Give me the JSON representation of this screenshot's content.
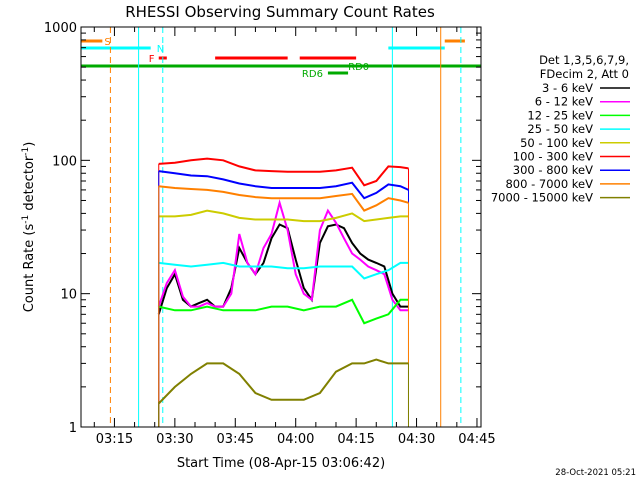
{
  "chart_data": {
    "type": "line",
    "title": "RHESSI Observing Summary Count Rates",
    "xlabel": "Start Time (08-Apr-15 03:06:42)",
    "ylabel": "Count Rate (s",
    "ylabel_sup": "-1",
    "ylabel_mid": " detector",
    "ylabel_sup2": "-1",
    "ylabel_end": ")",
    "y_scale": "log",
    "ylim": [
      1,
      1000
    ],
    "xlim": [
      "03:06:42",
      "04:46:00"
    ],
    "x_ticks": [
      "03:15",
      "03:30",
      "03:45",
      "04:00",
      "04:15",
      "04:30",
      "04:45"
    ],
    "y_ticks": [
      "1",
      "10",
      "100",
      "1000"
    ],
    "legend_header": [
      "Det 1,3,5,6,7,9,",
      "FDecim 2, Att 0"
    ],
    "series": [
      {
        "name": "3 - 6 keV",
        "color": "#000000",
        "x": [
          "03:26",
          "03:28",
          "03:30",
          "03:32",
          "03:34",
          "03:36",
          "03:38",
          "03:40",
          "03:42",
          "03:44",
          "03:46",
          "03:48",
          "03:50",
          "03:52",
          "03:54",
          "03:56",
          "03:58",
          "04:00",
          "04:02",
          "04:04",
          "04:06",
          "04:08",
          "04:10",
          "04:12",
          "04:14",
          "04:16",
          "04:18",
          "04:20",
          "04:22",
          "04:24",
          "04:26",
          "04:28"
        ],
        "y": [
          7,
          11,
          14,
          9,
          8,
          8.5,
          9,
          8,
          8,
          11,
          22,
          17,
          14,
          17,
          26,
          33,
          31,
          18,
          11,
          9,
          24,
          32,
          33,
          31,
          24,
          20,
          18,
          17,
          16,
          10,
          8,
          8
        ]
      },
      {
        "name": "6 - 12 keV",
        "color": "#ff00ff",
        "x": [
          "03:26",
          "03:28",
          "03:30",
          "03:32",
          "03:34",
          "03:36",
          "03:38",
          "03:40",
          "03:42",
          "03:44",
          "03:46",
          "03:48",
          "03:50",
          "03:52",
          "03:54",
          "03:56",
          "03:58",
          "04:00",
          "04:02",
          "04:04",
          "04:06",
          "04:08",
          "04:10",
          "04:12",
          "04:14",
          "04:16",
          "04:18",
          "04:20",
          "04:22",
          "04:24",
          "04:26",
          "04:28"
        ],
        "y": [
          8,
          12,
          15,
          9.5,
          8,
          8,
          8.5,
          8,
          8,
          10,
          28,
          17,
          14,
          22,
          28,
          48,
          30,
          14,
          10,
          9,
          30,
          42,
          34,
          26,
          20,
          18,
          16,
          15,
          14,
          9,
          7.5,
          7.5
        ]
      },
      {
        "name": "12 - 25 keV",
        "color": "#00ff00",
        "x": [
          "03:26",
          "03:30",
          "03:34",
          "03:38",
          "03:42",
          "03:46",
          "03:50",
          "03:54",
          "03:58",
          "04:02",
          "04:06",
          "04:10",
          "04:14",
          "04:17",
          "04:20",
          "04:23",
          "04:26",
          "04:28"
        ],
        "y": [
          8,
          7.5,
          7.5,
          8,
          7.5,
          7.5,
          7.5,
          8,
          8,
          7.5,
          8,
          8,
          9,
          6,
          6.5,
          7,
          9,
          9
        ]
      },
      {
        "name": "25 - 50 keV",
        "color": "#00ffff",
        "x": [
          "03:26",
          "03:30",
          "03:34",
          "03:38",
          "03:42",
          "03:46",
          "03:50",
          "03:54",
          "03:58",
          "04:02",
          "04:06",
          "04:10",
          "04:14",
          "04:17",
          "04:20",
          "04:23",
          "04:26",
          "04:28"
        ],
        "y": [
          17,
          16.5,
          16,
          16.5,
          17,
          16,
          16,
          16,
          15.5,
          15.5,
          16,
          16,
          16,
          13,
          14,
          15,
          17,
          17
        ]
      },
      {
        "name": "50 - 100 keV",
        "color": "#cccc00",
        "x": [
          "03:26",
          "03:30",
          "03:34",
          "03:38",
          "03:42",
          "03:46",
          "03:50",
          "03:54",
          "03:58",
          "04:02",
          "04:06",
          "04:10",
          "04:14",
          "04:17",
          "04:20",
          "04:23",
          "04:26",
          "04:28"
        ],
        "y": [
          38,
          38,
          39,
          42,
          40,
          37,
          36,
          36,
          36,
          35,
          35,
          37,
          40,
          35,
          36,
          37,
          38,
          38
        ]
      },
      {
        "name": "100 - 300 keV",
        "color": "#ff0000",
        "x": [
          "03:26",
          "03:30",
          "03:34",
          "03:38",
          "03:42",
          "03:46",
          "03:50",
          "03:54",
          "03:58",
          "04:02",
          "04:06",
          "04:10",
          "04:14",
          "04:17",
          "04:20",
          "04:23",
          "04:26",
          "04:28"
        ],
        "y": [
          94,
          96,
          100,
          103,
          100,
          90,
          84,
          83,
          82,
          82,
          82,
          84,
          88,
          65,
          70,
          90,
          89,
          87
        ]
      },
      {
        "name": "300 - 800 keV",
        "color": "#0000ff",
        "x": [
          "03:26",
          "03:30",
          "03:34",
          "03:38",
          "03:42",
          "03:46",
          "03:50",
          "03:54",
          "03:58",
          "04:02",
          "04:06",
          "04:10",
          "04:14",
          "04:17",
          "04:20",
          "04:23",
          "04:26",
          "04:28"
        ],
        "y": [
          83,
          80,
          77,
          76,
          72,
          67,
          64,
          62,
          62,
          62,
          62,
          64,
          68,
          52,
          57,
          66,
          64,
          60
        ]
      },
      {
        "name": "800 - 7000 keV",
        "color": "#ff8000",
        "x": [
          "03:26",
          "03:30",
          "03:34",
          "03:38",
          "03:42",
          "03:46",
          "03:50",
          "03:54",
          "03:58",
          "04:02",
          "04:06",
          "04:10",
          "04:14",
          "04:17",
          "04:20",
          "04:23",
          "04:26",
          "04:28"
        ],
        "y": [
          64,
          62,
          61,
          60,
          58,
          55,
          53,
          52,
          52,
          52,
          52,
          54,
          56,
          42,
          46,
          52,
          50,
          48
        ]
      },
      {
        "name": "7000 - 15000 keV",
        "color": "#808000",
        "x": [
          "03:26",
          "03:30",
          "03:34",
          "03:38",
          "03:42",
          "03:46",
          "03:50",
          "03:54",
          "03:58",
          "04:02",
          "04:06",
          "04:10",
          "04:14",
          "04:17",
          "04:20",
          "04:23",
          "04:26",
          "04:28"
        ],
        "y": [
          1.5,
          2,
          2.5,
          3,
          3,
          2.5,
          1.8,
          1.6,
          1.6,
          1.6,
          1.8,
          2.6,
          3,
          3,
          3.2,
          3,
          3,
          3
        ]
      }
    ],
    "flags": [
      {
        "label": "S",
        "color": "#ff8000",
        "bars": [
          [
            "03:06:42",
            "03:12"
          ],
          [
            "04:37",
            "04:42"
          ]
        ]
      },
      {
        "label": "N",
        "color": "#00ffff",
        "bars": [
          [
            "03:06:42",
            "03:24"
          ],
          [
            "04:23",
            "04:37"
          ]
        ]
      },
      {
        "label": "F",
        "color": "#ff0000",
        "bars": [
          [
            "03:26",
            "03:28"
          ],
          [
            "03:40",
            "03:58"
          ],
          [
            "04:01",
            "04:15"
          ]
        ]
      },
      {
        "label": "",
        "color": "#00aa00",
        "bars": [
          [
            "03:06:42",
            "04:46"
          ]
        ]
      },
      {
        "label": "RD0",
        "color": "#00aa00",
        "bars": [
          [
            "04:16",
            "04:21"
          ]
        ]
      },
      {
        "label": "RD6",
        "color": "#00aa00",
        "bars": [
          [
            "04:08",
            "04:13"
          ]
        ]
      }
    ],
    "vertical_lines": [
      {
        "time": "03:14",
        "color": "#ff8000",
        "style": "dashed"
      },
      {
        "time": "03:21",
        "color": "#00ffff",
        "style": "solid"
      },
      {
        "time": "03:27",
        "color": "#00ffff",
        "style": "dashed"
      },
      {
        "time": "04:24",
        "color": "#00ffff",
        "style": "solid"
      },
      {
        "time": "04:36",
        "color": "#ff8000",
        "style": "solid"
      },
      {
        "time": "04:41",
        "color": "#00ffff",
        "style": "dashed"
      }
    ],
    "grid": false,
    "legend_placement": "right"
  },
  "footer": {
    "timestamp": "28-Oct-2021 05:21"
  }
}
